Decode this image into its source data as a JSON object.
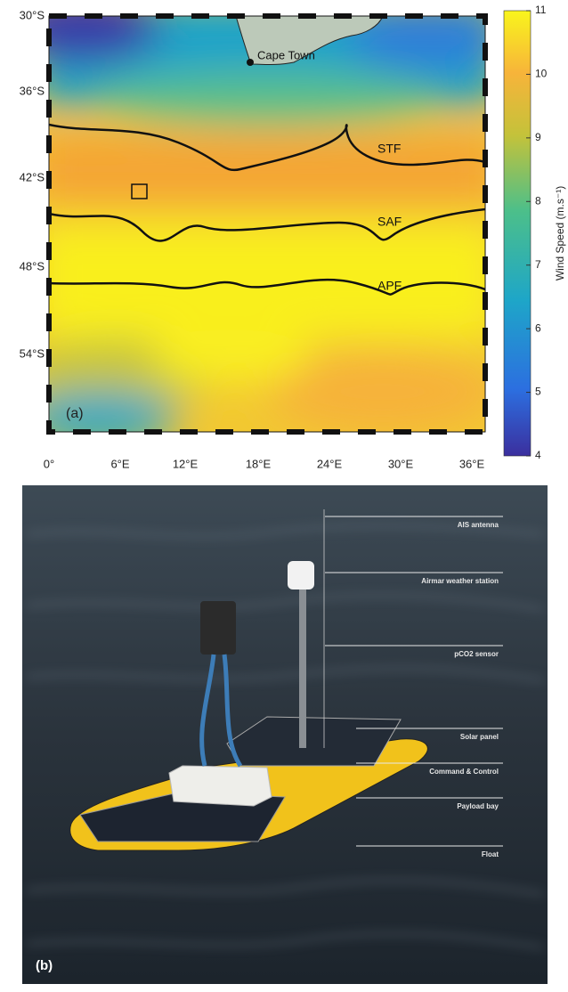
{
  "panel_a": {
    "label": "(a)",
    "city": "Cape Town",
    "fronts": [
      "STF",
      "SAF",
      "APF"
    ],
    "lat_labels": [
      "30°S",
      "36°S",
      "42°S",
      "48°S",
      "54°S"
    ],
    "lon_labels": [
      "0°",
      "6°E",
      "12°E",
      "18°E",
      "24°E",
      "30°E",
      "36°E"
    ],
    "colorbar": {
      "label": "Wind Speed (m.s⁻¹)",
      "range": [
        4,
        11
      ],
      "ticks": [
        4,
        5,
        6,
        7,
        8,
        9,
        10,
        11
      ]
    }
  },
  "panel_b": {
    "label": "(b)",
    "callouts": [
      "AIS antenna",
      "Airmar weather station",
      "pCO2 sensor",
      "Solar panel",
      "Command & Control",
      "Payload bay",
      "Float"
    ]
  }
}
